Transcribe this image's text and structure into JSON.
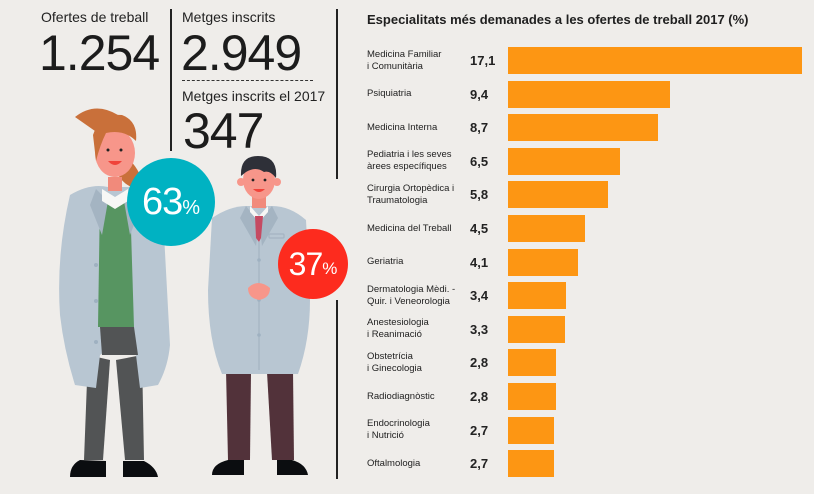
{
  "stats": {
    "job_offers": {
      "label": "Ofertes de treball",
      "value": "1.254"
    },
    "registered_doctors": {
      "label": "Metges inscrits",
      "value": "2.949"
    },
    "registered_doctors_2017": {
      "label": "Metges inscrits el 2017",
      "value": "347"
    }
  },
  "gender_split": {
    "women": {
      "value": "63",
      "unit": "%",
      "color": "#00b2c2"
    },
    "men": {
      "value": "37",
      "unit": "%",
      "color": "#fd2b1e"
    }
  },
  "colors": {
    "bar": "#fd9613",
    "background": "#efedea"
  },
  "chart_data": {
    "type": "bar",
    "orientation": "horizontal",
    "title": "Especialitats més demanades a les ofertes de treball 2017 (%)",
    "xlabel": "",
    "ylabel": "",
    "xlim": [
      0,
      17.1
    ],
    "grid": false,
    "categories": [
      [
        "Medicina Familiar",
        "i Comunitària"
      ],
      [
        "Psiquiatria"
      ],
      [
        "Medicina Interna"
      ],
      [
        "Pediatria i les seves",
        "àrees específiques"
      ],
      [
        "Cirurgia Ortopèdica i",
        "Traumatologia"
      ],
      [
        "Medicina del Treball"
      ],
      [
        "Geriatria"
      ],
      [
        "Dermatologia Mèdi. -",
        "Quir. i Veneorologia"
      ],
      [
        "Anestesiologia",
        "i Reanimació"
      ],
      [
        "Obstetrícia",
        "i Ginecologia"
      ],
      [
        "Radiodiagnòstic"
      ],
      [
        "Endocrinologia",
        "i Nutrició"
      ],
      [
        "Oftalmologia"
      ]
    ],
    "values": [
      17.1,
      9.4,
      8.7,
      6.5,
      5.8,
      4.5,
      4.1,
      3.4,
      3.3,
      2.8,
      2.8,
      2.7,
      2.7
    ],
    "value_labels": [
      "17,1",
      "9,4",
      "8,7",
      "6,5",
      "5,8",
      "4,5",
      "4,1",
      "3,4",
      "3,3",
      "2,8",
      "2,8",
      "2,7",
      "2,7"
    ]
  }
}
